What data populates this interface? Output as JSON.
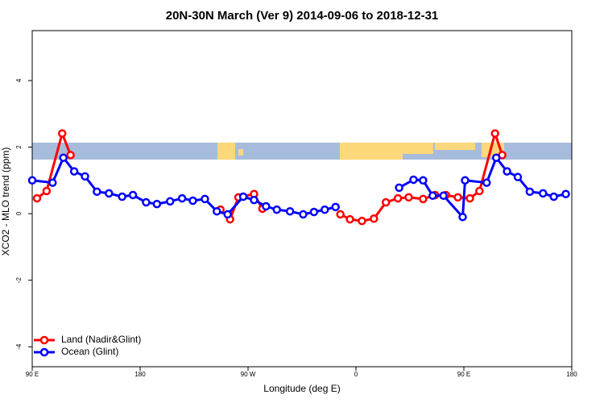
{
  "chart_data": {
    "type": "line",
    "title": "20N-30N March (Ver 9)   2014-09-06 to 2018-12-31",
    "x_label": "Longitude (deg E)",
    "y_label": "XCO2 - MLO trend (ppm)",
    "xlim": [
      90,
      540
    ],
    "xticks": [
      {
        "value": 90,
        "label": "90 E"
      },
      180,
      {
        "value": 270,
        "label": "90 W"
      },
      {
        "value": 360,
        "label": "0"
      },
      {
        "value": 450,
        "label": "90 E"
      },
      {
        "value": 540,
        "label": "180"
      }
    ],
    "ylim": [
      -4.6,
      5.5
    ],
    "yticks": [
      -4,
      -2,
      0,
      2,
      4
    ],
    "legend": "bottom-left",
    "series": [
      {
        "name": "Land (Nadir&Glint)",
        "color": "#ff0000",
        "x": [
          94,
          102,
          115,
          122,
          null,
          247,
          255,
          262,
          275,
          282,
          null,
          347,
          355,
          365,
          375,
          385,
          395,
          404,
          416,
          426,
          435,
          445,
          455,
          463,
          476,
          482
        ],
        "values": [
          0.46,
          0.68,
          2.41,
          1.76,
          null,
          0.12,
          -0.17,
          0.49,
          0.59,
          0.15,
          null,
          -0.02,
          -0.17,
          -0.22,
          -0.15,
          0.34,
          0.46,
          0.49,
          0.44,
          0.56,
          0.56,
          0.49,
          0.46,
          0.68,
          2.41,
          1.76
        ]
      },
      {
        "name": "Ocean (Glint)",
        "color": "#0000ff",
        "x": [
          90,
          107,
          116,
          125,
          134,
          144,
          154,
          165,
          174,
          185,
          194,
          205,
          215,
          224,
          234,
          244,
          253,
          266,
          275,
          285,
          294,
          305,
          316,
          325,
          334,
          343,
          null,
          396,
          408,
          416,
          424,
          433,
          449,
          451,
          469,
          477,
          486,
          495,
          505,
          516,
          525,
          535
        ],
        "values": [
          1.0,
          0.93,
          1.68,
          1.27,
          1.12,
          0.66,
          0.61,
          0.51,
          0.56,
          0.34,
          0.29,
          0.37,
          0.46,
          0.39,
          0.44,
          0.07,
          -0.02,
          0.51,
          0.41,
          0.22,
          0.12,
          0.07,
          -0.02,
          0.05,
          0.12,
          0.2,
          null,
          0.78,
          1.02,
          1.0,
          0.54,
          0.54,
          -0.1,
          1.0,
          0.93,
          1.68,
          1.27,
          1.1,
          0.66,
          0.61,
          0.51,
          0.59
        ]
      }
    ]
  }
}
